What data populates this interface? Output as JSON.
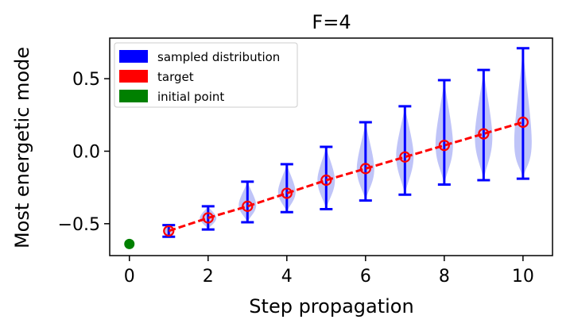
{
  "chart_data": {
    "type": "violin",
    "title": "F=4",
    "xlabel": "Step propagation",
    "ylabel": "Most energetic mode",
    "xlim": [
      -0.5,
      10.75
    ],
    "ylim": [
      -0.72,
      0.78
    ],
    "xticks": [
      0,
      2,
      4,
      6,
      8,
      10
    ],
    "xtick_labels": [
      "0",
      "2",
      "4",
      "6",
      "8",
      "10"
    ],
    "yticks": [
      -0.5,
      0.0,
      0.5
    ],
    "ytick_labels": [
      "−0.5",
      "0.0",
      "0.5"
    ],
    "legend_position": "top-left",
    "colors": {
      "sampled": "#0000ff",
      "violin_fill": "#aab0f5",
      "target": "#ff0000",
      "initial": "#008000"
    },
    "legend": [
      {
        "label": "sampled distribution",
        "color": "#0000ff"
      },
      {
        "label": "target",
        "color": "#ff0000"
      },
      {
        "label": "initial point",
        "color": "#008000"
      }
    ],
    "initial_point": {
      "x": 0,
      "y": -0.64
    },
    "target": {
      "x": [
        1,
        2,
        3,
        4,
        5,
        6,
        7,
        8,
        9,
        10
      ],
      "y": [
        -0.55,
        -0.46,
        -0.38,
        -0.29,
        -0.2,
        -0.12,
        -0.04,
        0.04,
        0.12,
        0.2
      ]
    },
    "sampled_distribution": [
      {
        "x": 1,
        "min": -0.59,
        "max": -0.51,
        "center": -0.55
      },
      {
        "x": 2,
        "min": -0.54,
        "max": -0.38,
        "center": -0.46
      },
      {
        "x": 3,
        "min": -0.49,
        "max": -0.21,
        "center": -0.37
      },
      {
        "x": 4,
        "min": -0.42,
        "max": -0.09,
        "center": -0.28
      },
      {
        "x": 5,
        "min": -0.4,
        "max": 0.03,
        "center": -0.2
      },
      {
        "x": 6,
        "min": -0.34,
        "max": 0.2,
        "center": -0.12
      },
      {
        "x": 7,
        "min": -0.3,
        "max": 0.31,
        "center": -0.03
      },
      {
        "x": 8,
        "min": -0.23,
        "max": 0.49,
        "center": 0.05
      },
      {
        "x": 9,
        "min": -0.2,
        "max": 0.56,
        "center": 0.1
      },
      {
        "x": 10,
        "min": -0.19,
        "max": 0.71,
        "center": 0.07
      }
    ]
  }
}
